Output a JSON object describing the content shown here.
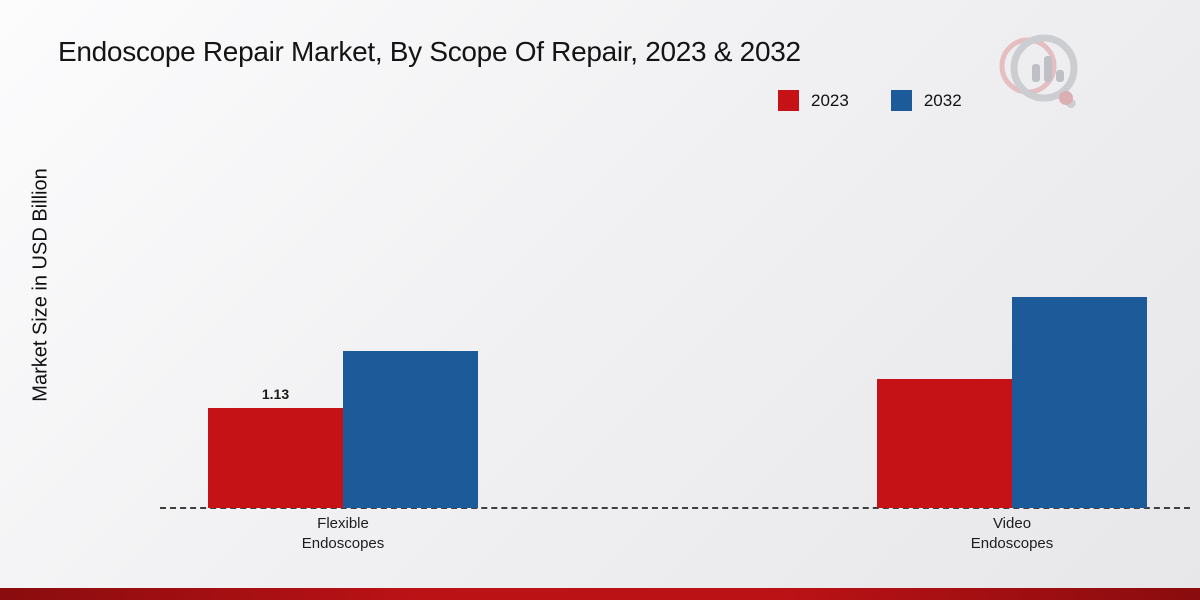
{
  "chart_data": {
    "type": "bar",
    "title": "Endoscope Repair Market, By Scope Of Repair, 2023 & 2032",
    "ylabel": "Market Size in USD Billion",
    "xlabel": "",
    "categories": [
      "Flexible Endoscopes",
      "Video Endoscopes"
    ],
    "category_display": [
      "Flexible\nEndoscopes",
      "Video\nEndoscopes"
    ],
    "series": [
      {
        "name": "2023",
        "color": "#c41217",
        "values": [
          1.13,
          1.46
        ]
      },
      {
        "name": "2032",
        "color": "#1c5a99",
        "values": [
          1.77,
          2.38
        ]
      }
    ],
    "value_labels": [
      {
        "series_index": 0,
        "category_index": 0,
        "text": "1.13"
      }
    ],
    "ylim": [
      0,
      2.6
    ],
    "grid": false,
    "legend_position": "top-right",
    "baseline_style": "dashed"
  },
  "branding": {
    "logo_name": "market-research-future-logo",
    "accent_bar_color": "#a80e12"
  }
}
